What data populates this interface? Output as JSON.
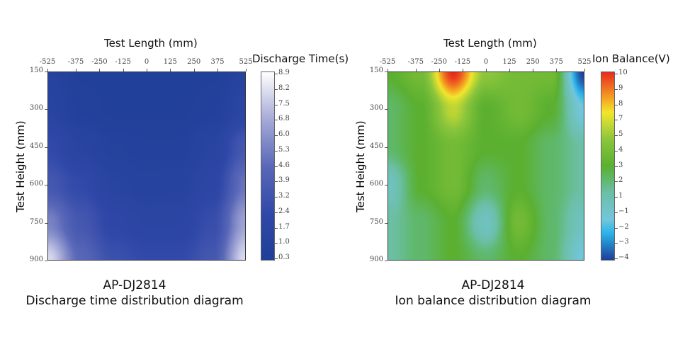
{
  "chart_data": [
    {
      "type": "heatmap",
      "title": "Test Length (mm)",
      "xlabel": "Test Length (mm)",
      "ylabel": "Test Height (mm)",
      "x_ticks": [
        -525,
        -375,
        -250,
        -125,
        0,
        125,
        250,
        375,
        525
      ],
      "y_ticks": [
        150,
        300,
        450,
        600,
        750,
        900
      ],
      "xlim": [
        -525,
        525
      ],
      "ylim": [
        150,
        900
      ],
      "colorbar": {
        "label": "Discharge Time(s)",
        "ticks": [
          8.9,
          8.2,
          7.5,
          6.8,
          6.0,
          5.3,
          4.6,
          3.9,
          3.2,
          2.4,
          1.7,
          1.0,
          0.3
        ],
        "range": [
          0.3,
          8.9
        ],
        "stops": [
          [
            0.3,
            "#1f3f98"
          ],
          [
            2.4,
            "#3048a8"
          ],
          [
            4.6,
            "#5a68b8"
          ],
          [
            6.8,
            "#a8acd8"
          ],
          [
            8.9,
            "#ffffff"
          ]
        ]
      },
      "grid_x": [
        -525,
        -350,
        -175,
        0,
        175,
        350,
        525
      ],
      "grid_y": [
        150,
        300,
        450,
        600,
        750,
        900
      ],
      "z": [
        [
          1.2,
          0.6,
          0.5,
          0.5,
          0.5,
          0.6,
          1.2
        ],
        [
          1.5,
          0.8,
          0.6,
          0.6,
          0.6,
          0.8,
          1.8
        ],
        [
          2.5,
          1.5,
          1.0,
          0.9,
          0.9,
          1.5,
          3.5
        ],
        [
          3.5,
          2.5,
          1.5,
          1.2,
          1.3,
          2.0,
          5.0
        ],
        [
          5.5,
          3.5,
          2.2,
          1.8,
          1.8,
          2.8,
          6.5
        ],
        [
          8.0,
          4.5,
          3.0,
          2.5,
          2.5,
          3.5,
          8.0
        ]
      ],
      "caption": [
        "AP-DJ2814",
        "Discharge time distribution diagram"
      ]
    },
    {
      "type": "heatmap",
      "title": "Test Length (mm)",
      "xlabel": "Test Length (mm)",
      "ylabel": "Test Height (mm)",
      "x_ticks": [
        -525,
        -375,
        -250,
        -125,
        0,
        125,
        250,
        375,
        525
      ],
      "y_ticks": [
        150,
        300,
        450,
        600,
        750,
        900
      ],
      "xlim": [
        -525,
        525
      ],
      "ylim": [
        150,
        900
      ],
      "colorbar": {
        "label": "Ion Balance(V)",
        "ticks": [
          10,
          9,
          8,
          7,
          5,
          4,
          3,
          2,
          1,
          -1,
          -2,
          -3,
          -4
        ],
        "range": [
          -4,
          10
        ],
        "stops": [
          [
            -4,
            "#1c3f9a"
          ],
          [
            -2,
            "#2ab4ea"
          ],
          [
            -1,
            "#72c6dc"
          ],
          [
            1,
            "#6cbfa6"
          ],
          [
            2,
            "#5fb86a"
          ],
          [
            3,
            "#5bb030"
          ],
          [
            5,
            "#8cc63c"
          ],
          [
            7,
            "#f2e62c"
          ],
          [
            8,
            "#f5a623"
          ],
          [
            10,
            "#e82a1e"
          ]
        ]
      },
      "grid_x": [
        -525,
        -350,
        -175,
        0,
        175,
        350,
        525
      ],
      "grid_y": [
        150,
        300,
        450,
        600,
        750,
        900
      ],
      "z": [
        [
          3,
          4,
          10,
          5,
          4,
          4,
          -4
        ],
        [
          2,
          3,
          6,
          3,
          4,
          3,
          -1
        ],
        [
          2,
          3,
          4,
          3,
          3,
          2,
          1
        ],
        [
          0,
          3,
          4,
          2,
          3,
          2,
          1
        ],
        [
          1,
          2,
          3,
          0,
          4,
          2,
          0
        ],
        [
          1,
          2,
          3,
          2,
          3,
          2,
          -1
        ]
      ],
      "caption": [
        "AP-DJ2814",
        "Ion balance distribution diagram"
      ]
    }
  ]
}
